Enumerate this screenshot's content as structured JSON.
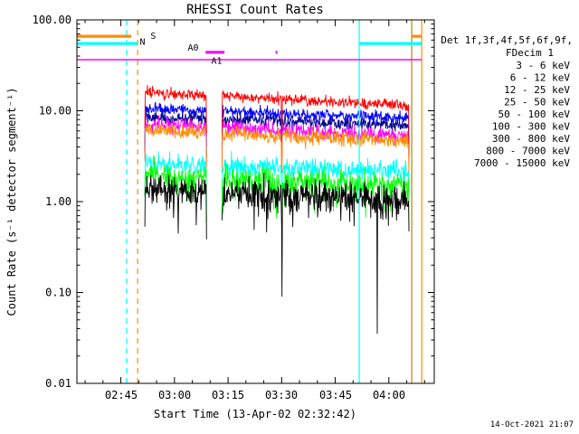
{
  "chart_data": {
    "type": "line",
    "title": "RHESSI Count Rates",
    "xlabel": "Start Time (13-Apr-02 02:32:42)",
    "ylabel": "Count Rate (s⁻¹ detector segment⁻¹)",
    "y_scale": "log",
    "ylim": [
      0.01,
      100
    ],
    "y_ticks": [
      "100.00",
      "10.00",
      "1.00",
      "0.10",
      "0.01"
    ],
    "x_ticks": [
      "02:45",
      "03:00",
      "03:15",
      "03:30",
      "03:45",
      "04:00"
    ],
    "x_tick_minutes": [
      12.3,
      27.3,
      42.3,
      57.3,
      72.3,
      87.3
    ],
    "x_range_minutes": [
      0,
      100
    ],
    "start_time": "13-Apr-02 02:32:42",
    "data_minutes": {
      "start": 19.0,
      "end": 93.0,
      "gap": [
        36.3,
        40.6
      ],
      "dropout": 57.35
    },
    "series": [
      {
        "name": "3 - 6 keV",
        "color": "#000000",
        "level_start": 1.45,
        "level_end": 1.0,
        "noise": 0.2,
        "spikes": [
          {
            "t": 57.35,
            "v": 0.09
          },
          {
            "t": 84.0,
            "v": 0.035
          }
        ]
      },
      {
        "name": "6 - 12 keV",
        "color": "#FF00FF",
        "level_start": 7.2,
        "level_end": 5.3,
        "noise": 0.1,
        "spikes": []
      },
      {
        "name": "12 - 25 keV",
        "color": "#00FF00",
        "level_start": 1.95,
        "level_end": 1.45,
        "noise": 0.18,
        "spikes": [
          {
            "t": 40.84,
            "v": 0.75
          }
        ]
      },
      {
        "name": "25 - 50 keV",
        "color": "#00FFFF",
        "level_start": 2.6,
        "level_end": 2.15,
        "noise": 0.13,
        "spikes": []
      },
      {
        "name": "50 - 100 keV",
        "color": "#FF8C00",
        "level_start": 6.2,
        "level_end": 4.6,
        "noise": 0.1,
        "spikes": []
      },
      {
        "name": "100 - 300 keV",
        "color": "#FF0000",
        "level_start": 16.0,
        "level_end": 11.5,
        "noise": 0.07,
        "spikes": []
      },
      {
        "name": "300 - 800 keV",
        "color": "#000090",
        "level_start": 8.6,
        "level_end": 6.9,
        "noise": 0.08,
        "spikes": []
      },
      {
        "name": "800 - 7000 keV",
        "color": "#0000FF",
        "level_start": 10.6,
        "level_end": 8.3,
        "noise": 0.07,
        "spikes": []
      },
      {
        "name": "7000 - 15000 keV",
        "color": "#B8860B",
        "level_start": null,
        "level_end": null,
        "noise": 0,
        "spikes": []
      }
    ],
    "legend": {
      "header1": "Det 1f,3f,4f,5f,6f,9f,",
      "header2": "FDecim 1"
    },
    "overlays": {
      "flag_bars": [
        {
          "name": "saa-bar-left",
          "color": "#FF8C00",
          "value": 66,
          "t": [
            0,
            15.2
          ]
        },
        {
          "name": "night-bar-left",
          "color": "#00FFFF",
          "value": 55,
          "t": [
            0,
            17.0
          ]
        },
        {
          "name": "night-bar-right",
          "color": "#00FFFF",
          "value": 55,
          "t": [
            79.0,
            96.5
          ]
        },
        {
          "name": "saa-bar-right",
          "color": "#FF8C00",
          "value": 66,
          "t": [
            93.7,
            96.5
          ]
        }
      ],
      "attenuator": {
        "color": "#FF00FF",
        "value": 36.5,
        "t": [
          0,
          96.5
        ],
        "a1_segments": [
          {
            "t": [
              36.0,
              41.3
            ],
            "value": 44
          },
          {
            "t": [
              55.6,
              56.1
            ],
            "value": 44
          }
        ]
      },
      "vlines": [
        {
          "name": "vline-cyan-dashed",
          "color": "#00FFFF",
          "style": "dashed",
          "t": 13.9
        },
        {
          "name": "vline-orange-dashed",
          "color": "#FF8C00",
          "style": "dashed",
          "t": 17.0
        },
        {
          "name": "vline-cyan-solid",
          "color": "#00FFFF",
          "style": "solid",
          "t": 79.0
        },
        {
          "name": "vline-gold-solid",
          "color": "#B8860B",
          "style": "solid",
          "t": 93.7
        },
        {
          "name": "vline-orange-solid",
          "color": "#FF8C00",
          "style": "solid",
          "t": 96.5
        }
      ],
      "labels": [
        {
          "text": "N",
          "color": "#00FFFF",
          "t": 17.6,
          "value": 53
        },
        {
          "text": "S",
          "color": "#FF8C00",
          "t": 20.6,
          "value": 62
        },
        {
          "text": "A0",
          "color": "#FF00FF",
          "t": 31.0,
          "value": 46
        },
        {
          "text": "A1",
          "color": "#FF00FF",
          "t": 37.6,
          "value": 33
        }
      ]
    }
  },
  "footer": {
    "timestamp": "14-Oct-2021 21:07"
  }
}
